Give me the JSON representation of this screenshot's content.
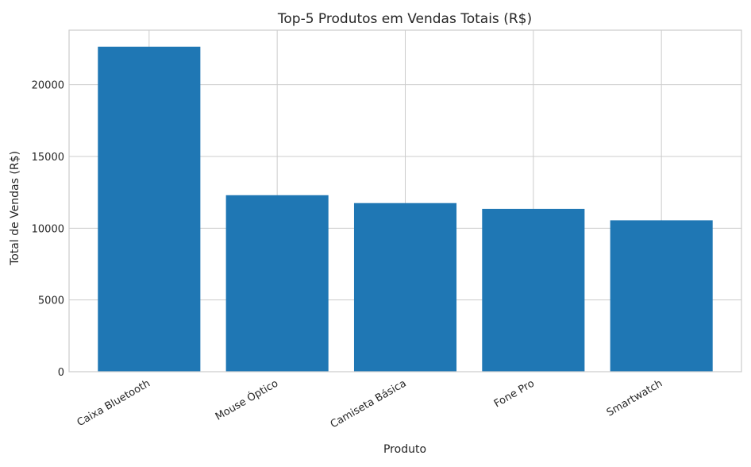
{
  "chart_data": {
    "type": "bar",
    "title": "Top-5 Produtos em Vendas Totais (R$)",
    "xlabel": "Produto",
    "ylabel": "Total de Vendas (R$)",
    "categories": [
      "Caixa Bluetooth",
      "Mouse Óptico",
      "Camiseta Básica",
      "Fone Pro",
      "Smartwatch"
    ],
    "values": [
      22650,
      12300,
      11750,
      11350,
      10550
    ],
    "ylim": [
      0,
      23800
    ],
    "yticks": [
      0,
      5000,
      10000,
      15000,
      20000
    ],
    "ytick_labels": [
      "0",
      "5000",
      "10000",
      "15000",
      "20000"
    ],
    "grid": true,
    "bar_color": "#1f77b4",
    "grid_color": "#cccccc",
    "spine_color": "#cccccc"
  }
}
